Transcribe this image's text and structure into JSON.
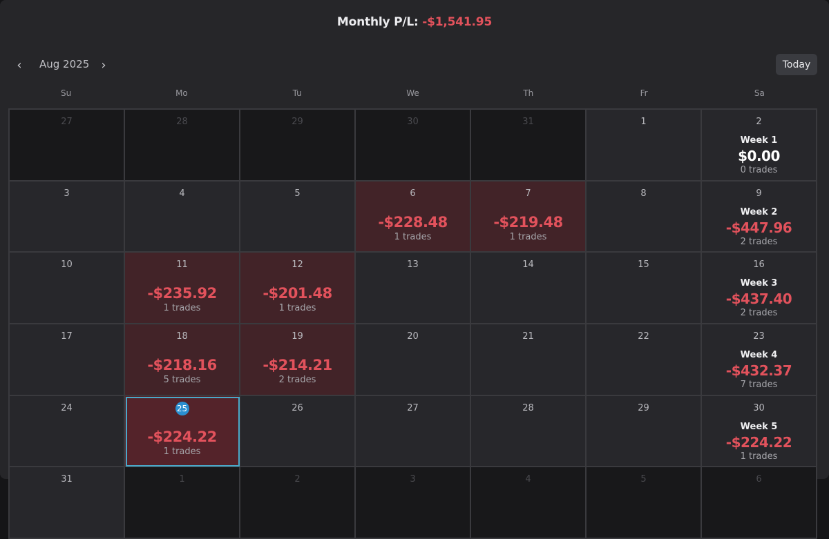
{
  "header": {
    "monthly_label": "Monthly P/L:",
    "monthly_value": "-$1,541.95",
    "loss_color": "#e2525c"
  },
  "nav": {
    "prev_icon": "chevron-left-icon",
    "next_icon": "chevron-right-icon",
    "prev_glyph": "‹",
    "next_glyph": "›",
    "month_label": "Aug 2025",
    "today_label": "Today"
  },
  "weekdays": [
    "Su",
    "Mo",
    "Tu",
    "We",
    "Th",
    "Fr",
    "Sa"
  ],
  "weeks": [
    {
      "days": [
        {
          "day": "27",
          "outside": true
        },
        {
          "day": "28",
          "outside": true
        },
        {
          "day": "29",
          "outside": true
        },
        {
          "day": "30",
          "outside": true
        },
        {
          "day": "31",
          "outside": true
        },
        {
          "day": "1"
        },
        {
          "day": "2"
        }
      ],
      "summary": {
        "label": "Week 1",
        "pl": "$0.00",
        "trades": "0 trades",
        "zero": true
      }
    },
    {
      "days": [
        {
          "day": "3"
        },
        {
          "day": "4"
        },
        {
          "day": "5"
        },
        {
          "day": "6",
          "pl": "-$228.48",
          "trades": "1 trades"
        },
        {
          "day": "7",
          "pl": "-$219.48",
          "trades": "1 trades"
        },
        {
          "day": "8"
        },
        {
          "day": "9"
        }
      ],
      "summary": {
        "label": "Week 2",
        "pl": "-$447.96",
        "trades": "2 trades"
      }
    },
    {
      "days": [
        {
          "day": "10"
        },
        {
          "day": "11",
          "pl": "-$235.92",
          "trades": "1 trades"
        },
        {
          "day": "12",
          "pl": "-$201.48",
          "trades": "1 trades"
        },
        {
          "day": "13"
        },
        {
          "day": "14"
        },
        {
          "day": "15"
        },
        {
          "day": "16"
        }
      ],
      "summary": {
        "label": "Week 3",
        "pl": "-$437.40",
        "trades": "2 trades"
      }
    },
    {
      "days": [
        {
          "day": "17"
        },
        {
          "day": "18",
          "pl": "-$218.16",
          "trades": "5 trades"
        },
        {
          "day": "19",
          "pl": "-$214.21",
          "trades": "2 trades"
        },
        {
          "day": "20"
        },
        {
          "day": "21"
        },
        {
          "day": "22"
        },
        {
          "day": "23"
        }
      ],
      "summary": {
        "label": "Week 4",
        "pl": "-$432.37",
        "trades": "7 trades"
      }
    },
    {
      "days": [
        {
          "day": "24"
        },
        {
          "day": "25",
          "pl": "-$224.22",
          "trades": "1 trades",
          "today": true
        },
        {
          "day": "26"
        },
        {
          "day": "27"
        },
        {
          "day": "28"
        },
        {
          "day": "29"
        },
        {
          "day": "30"
        }
      ],
      "summary": {
        "label": "Week 5",
        "pl": "-$224.22",
        "trades": "1 trades"
      }
    },
    {
      "days": [
        {
          "day": "31"
        },
        {
          "day": "1",
          "outside": true
        },
        {
          "day": "2",
          "outside": true
        },
        {
          "day": "3",
          "outside": true
        },
        {
          "day": "4",
          "outside": true
        },
        {
          "day": "5",
          "outside": true
        },
        {
          "day": "6",
          "outside": true
        }
      ]
    }
  ]
}
